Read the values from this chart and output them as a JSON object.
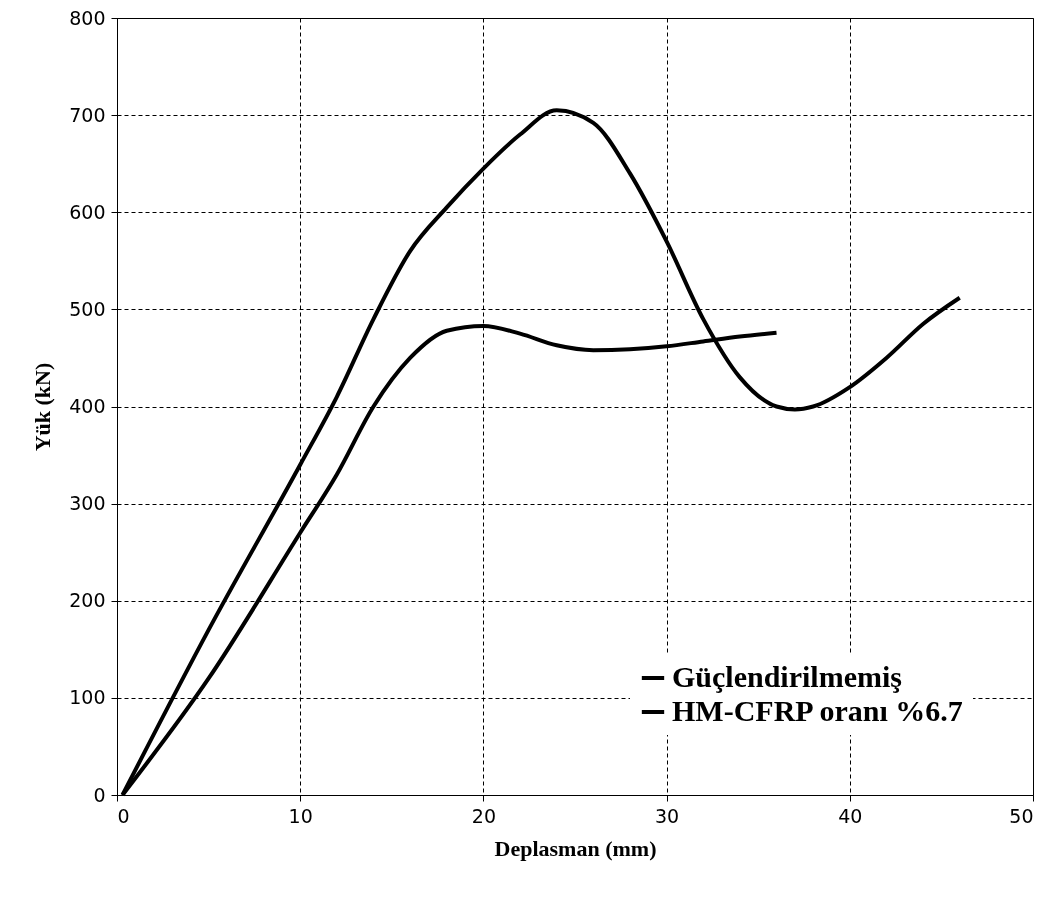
{
  "chart_data": {
    "type": "line",
    "xlabel": "Deplasman (mm)",
    "ylabel": "Yük (kN)",
    "xlim": [
      0,
      50
    ],
    "xticks": [
      0,
      10,
      20,
      30,
      40,
      50
    ],
    "ylim": [
      0,
      800
    ],
    "yticks": [
      0,
      100,
      200,
      300,
      400,
      500,
      600,
      700,
      800
    ],
    "grid": true,
    "legend": "bottom right",
    "line_style": "solid",
    "marker": "none",
    "series": [
      {
        "name": "Güçlendirilmemiş",
        "color": "#000000",
        "x": [
          0.3,
          5,
          10,
          12,
          14,
          16,
          18,
          20,
          22,
          24,
          26,
          28,
          30,
          32,
          34,
          36
        ],
        "values": [
          0,
          120,
          270,
          330,
          400,
          450,
          478,
          483,
          475,
          463,
          458,
          459,
          462,
          467,
          472,
          476
        ]
      },
      {
        "name": "HM-CFRP oranı %6.7",
        "color": "#000000",
        "x": [
          0.3,
          5,
          10,
          12,
          14,
          16,
          18,
          20,
          22,
          24,
          26,
          28,
          30,
          32,
          34,
          36,
          37,
          38,
          40,
          42,
          44,
          46
        ],
        "values": [
          0,
          170,
          340,
          410,
          490,
          560,
          605,
          645,
          680,
          705,
          692,
          640,
          570,
          490,
          430,
          400,
          397,
          400,
          420,
          450,
          485,
          512
        ]
      }
    ]
  }
}
